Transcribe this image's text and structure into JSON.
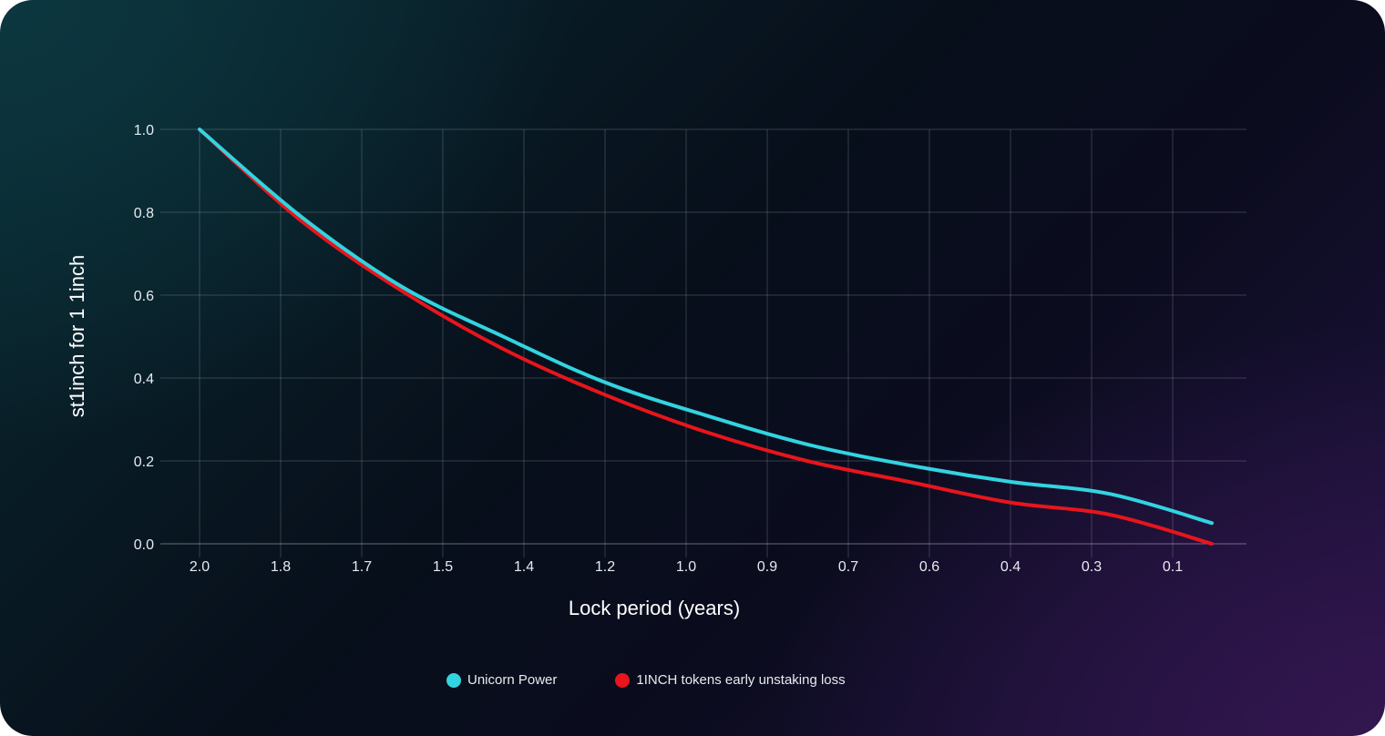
{
  "chart_data": {
    "type": "line",
    "xlabel": "Lock period (years)",
    "ylabel": "st1inch for 1 1inch",
    "x_tick_labels": [
      "2.0",
      "1.8",
      "1.7",
      "1.5",
      "1.4",
      "1.2",
      "1.0",
      "0.9",
      "0.7",
      "0.6",
      "0.4",
      "0.3",
      "0.1"
    ],
    "y_tick_labels": [
      "1.0",
      "0.8",
      "0.6",
      "0.4",
      "0.2",
      "0.0"
    ],
    "x_range": [
      2.0,
      0.0
    ],
    "ylim": [
      0,
      1.0
    ],
    "x_reversed": true,
    "grid": true,
    "legend_position": "bottom-center",
    "series": [
      {
        "name": "Unicorn Power",
        "color": "#33d3e0",
        "x": [
          2.0,
          1.8,
          1.6,
          1.4,
          1.2,
          1.0,
          0.8,
          0.6,
          0.4,
          0.2,
          0.0
        ],
        "values": [
          1.0,
          0.79,
          0.62,
          0.5,
          0.39,
          0.31,
          0.24,
          0.19,
          0.15,
          0.12,
          0.05
        ]
      },
      {
        "name": "1INCH tokens early unstaking loss",
        "color": "#e8151c",
        "x": [
          2.0,
          1.8,
          1.6,
          1.4,
          1.2,
          1.0,
          0.8,
          0.6,
          0.4,
          0.2,
          0.0
        ],
        "values": [
          1.0,
          0.78,
          0.61,
          0.47,
          0.36,
          0.27,
          0.2,
          0.15,
          0.1,
          0.07,
          0.0
        ]
      }
    ]
  }
}
